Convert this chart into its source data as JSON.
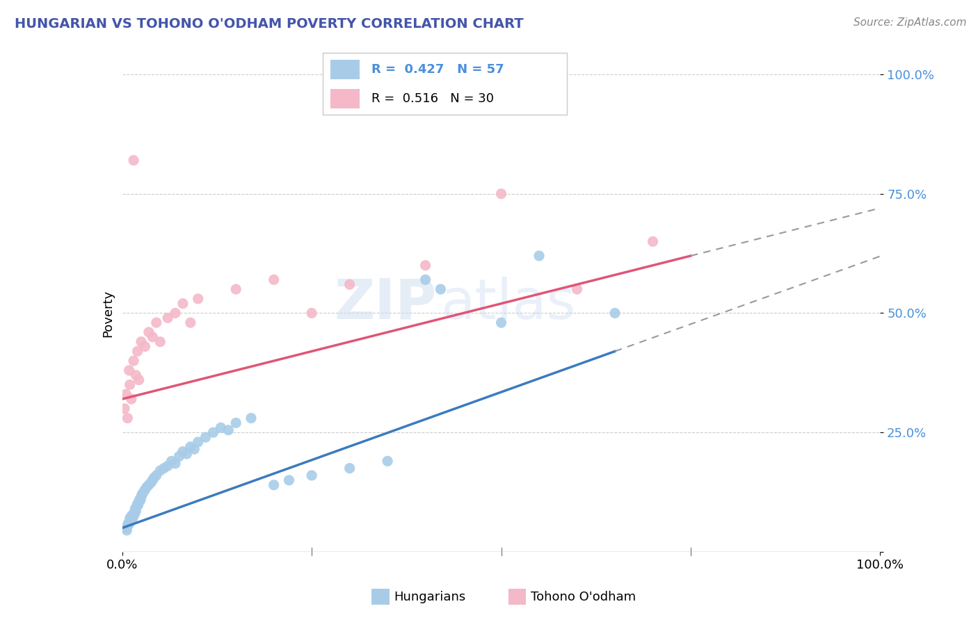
{
  "title": "HUNGARIAN VS TOHONO O'ODHAM POVERTY CORRELATION CHART",
  "source": "Source: ZipAtlas.com",
  "ylabel": "Poverty",
  "legend_label1": "Hungarians",
  "legend_label2": "Tohono O'odham",
  "r1": 0.427,
  "n1": 57,
  "r2": 0.516,
  "n2": 30,
  "watermark_zip": "ZIP",
  "watermark_atlas": "atlas",
  "blue_color": "#a8cce8",
  "pink_color": "#f4b8c8",
  "blue_line_color": "#3a7bbf",
  "pink_line_color": "#e05575",
  "blue_dots": [
    [
      0.5,
      5.0
    ],
    [
      0.6,
      4.5
    ],
    [
      0.7,
      5.5
    ],
    [
      0.8,
      6.0
    ],
    [
      0.9,
      5.8
    ],
    [
      1.0,
      7.0
    ],
    [
      1.1,
      6.5
    ],
    [
      1.2,
      7.5
    ],
    [
      1.3,
      6.8
    ],
    [
      1.4,
      7.2
    ],
    [
      1.5,
      8.0
    ],
    [
      1.6,
      7.8
    ],
    [
      1.7,
      9.0
    ],
    [
      1.8,
      8.5
    ],
    [
      1.9,
      9.5
    ],
    [
      2.0,
      10.0
    ],
    [
      2.1,
      9.8
    ],
    [
      2.2,
      10.5
    ],
    [
      2.3,
      11.0
    ],
    [
      2.4,
      10.8
    ],
    [
      2.5,
      11.5
    ],
    [
      2.6,
      12.0
    ],
    [
      2.8,
      12.5
    ],
    [
      3.0,
      13.0
    ],
    [
      3.2,
      13.5
    ],
    [
      3.5,
      14.0
    ],
    [
      3.8,
      14.5
    ],
    [
      4.0,
      15.0
    ],
    [
      4.2,
      15.5
    ],
    [
      4.5,
      16.0
    ],
    [
      5.0,
      17.0
    ],
    [
      5.5,
      17.5
    ],
    [
      6.0,
      18.0
    ],
    [
      6.5,
      19.0
    ],
    [
      7.0,
      18.5
    ],
    [
      7.5,
      20.0
    ],
    [
      8.0,
      21.0
    ],
    [
      8.5,
      20.5
    ],
    [
      9.0,
      22.0
    ],
    [
      9.5,
      21.5
    ],
    [
      10.0,
      23.0
    ],
    [
      11.0,
      24.0
    ],
    [
      12.0,
      25.0
    ],
    [
      13.0,
      26.0
    ],
    [
      14.0,
      25.5
    ],
    [
      15.0,
      27.0
    ],
    [
      17.0,
      28.0
    ],
    [
      20.0,
      14.0
    ],
    [
      22.0,
      15.0
    ],
    [
      25.0,
      16.0
    ],
    [
      30.0,
      17.5
    ],
    [
      35.0,
      19.0
    ],
    [
      40.0,
      57.0
    ],
    [
      42.0,
      55.0
    ],
    [
      50.0,
      48.0
    ],
    [
      55.0,
      62.0
    ],
    [
      65.0,
      50.0
    ]
  ],
  "pink_dots": [
    [
      0.3,
      30.0
    ],
    [
      0.5,
      33.0
    ],
    [
      0.7,
      28.0
    ],
    [
      0.9,
      38.0
    ],
    [
      1.0,
      35.0
    ],
    [
      1.2,
      32.0
    ],
    [
      1.5,
      40.0
    ],
    [
      1.8,
      37.0
    ],
    [
      2.0,
      42.0
    ],
    [
      2.2,
      36.0
    ],
    [
      2.5,
      44.0
    ],
    [
      3.0,
      43.0
    ],
    [
      3.5,
      46.0
    ],
    [
      4.0,
      45.0
    ],
    [
      4.5,
      48.0
    ],
    [
      5.0,
      44.0
    ],
    [
      6.0,
      49.0
    ],
    [
      7.0,
      50.0
    ],
    [
      8.0,
      52.0
    ],
    [
      9.0,
      48.0
    ],
    [
      10.0,
      53.0
    ],
    [
      15.0,
      55.0
    ],
    [
      20.0,
      57.0
    ],
    [
      25.0,
      50.0
    ],
    [
      30.0,
      56.0
    ],
    [
      40.0,
      60.0
    ],
    [
      50.0,
      75.0
    ],
    [
      60.0,
      55.0
    ],
    [
      70.0,
      65.0
    ],
    [
      1.5,
      82.0
    ]
  ],
  "xlim": [
    0.0,
    100.0
  ],
  "ylim": [
    0.0,
    100.0
  ],
  "yticks": [
    0.0,
    25.0,
    50.0,
    75.0,
    100.0
  ],
  "ytick_labels": [
    "",
    "25.0%",
    "50.0%",
    "75.0%",
    "100.0%"
  ],
  "xtick_vals": [
    0.0,
    25.0,
    50.0,
    75.0,
    100.0
  ],
  "blue_line_x_end_solid": 65.0,
  "pink_line_x_end_solid": 75.0,
  "background_color": "#ffffff",
  "grid_color": "#cccccc",
  "title_color": "#4455aa",
  "source_color": "#888888",
  "ytick_color": "#4a90d9"
}
